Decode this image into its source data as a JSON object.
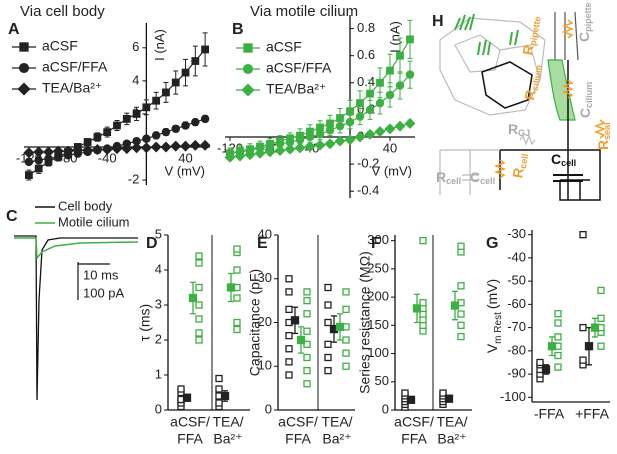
{
  "panel_labels": [
    "A",
    "B",
    "C",
    "D",
    "E",
    "F",
    "G",
    "H"
  ],
  "chart_data": [
    {
      "type": "line",
      "title": "Via cell body",
      "xlabel": "V (mV)",
      "ylabel": "I (nA)",
      "x": [
        -120,
        -110,
        -100,
        -90,
        -80,
        -70,
        -60,
        -50,
        -40,
        -30,
        -20,
        -10,
        0,
        10,
        20,
        30,
        40,
        50,
        60
      ],
      "xlim": [
        -125,
        65
      ],
      "ylim": [
        -2.3,
        7.5
      ],
      "xticks": [
        -120,
        -80,
        -40,
        40
      ],
      "yticks": [
        -2,
        2,
        4,
        6
      ],
      "series": [
        {
          "name": "aCSF",
          "color": "#222222",
          "marker": "square",
          "values": [
            -1.7,
            -1.3,
            -0.9,
            -0.6,
            -0.3,
            0,
            0.3,
            0.6,
            0.9,
            1.3,
            1.7,
            2.0,
            2.4,
            2.8,
            3.3,
            3.9,
            4.5,
            5.2,
            5.9
          ],
          "errors": [
            0.3,
            0.3,
            0.25,
            0.25,
            0.2,
            0.2,
            0.2,
            0.25,
            0.3,
            0.3,
            0.35,
            0.4,
            0.45,
            0.5,
            0.6,
            0.7,
            0.8,
            0.9,
            1.0
          ]
        },
        {
          "name": "aCSF/FFA",
          "color": "#222222",
          "marker": "circle",
          "values": [
            -0.9,
            -0.8,
            -0.7,
            -0.6,
            -0.5,
            -0.4,
            -0.3,
            -0.2,
            -0.1,
            0.05,
            0.2,
            0.35,
            0.5,
            0.7,
            0.9,
            1.1,
            1.3,
            1.5,
            1.7
          ],
          "errors": [
            0.15,
            0.15,
            0.15,
            0.15,
            0.15,
            0.15,
            0.15,
            0.15,
            0.15,
            0.15,
            0.15,
            0.15,
            0.15,
            0.2,
            0.2,
            0.2,
            0.2,
            0.2,
            0.2
          ]
        },
        {
          "name": "TEA/Ba²⁺",
          "color": "#222222",
          "marker": "diamond",
          "values": [
            -0.35,
            -0.3,
            -0.3,
            -0.25,
            -0.25,
            -0.2,
            -0.2,
            -0.15,
            -0.15,
            -0.1,
            -0.1,
            -0.05,
            -0.05,
            0,
            0,
            0.05,
            0.05,
            0.1,
            0.1
          ],
          "errors": [
            0.1,
            0.1,
            0.1,
            0.1,
            0.1,
            0.1,
            0.1,
            0.1,
            0.1,
            0.1,
            0.1,
            0.1,
            0.1,
            0.1,
            0.1,
            0.1,
            0.1,
            0.1,
            0.1
          ]
        }
      ]
    },
    {
      "type": "line",
      "title": "Via motile cilium",
      "xlabel": "V (mV)",
      "ylabel": "I (nA)",
      "x": [
        -120,
        -110,
        -100,
        -90,
        -80,
        -70,
        -60,
        -50,
        -40,
        -30,
        -20,
        -10,
        0,
        10,
        20,
        30,
        40,
        50,
        60
      ],
      "xlim": [
        -125,
        65
      ],
      "ylim": [
        -0.45,
        0.9
      ],
      "xticks": [
        -120,
        -80,
        -40,
        40
      ],
      "yticks": [
        -0.4,
        -0.2,
        0,
        0.2,
        0.4,
        0.6,
        0.8
      ],
      "series": [
        {
          "name": "aCSF",
          "color": "#3cb043",
          "marker": "square",
          "values": [
            -0.12,
            -0.1,
            -0.09,
            -0.07,
            -0.05,
            -0.03,
            -0.01,
            0.01,
            0.04,
            0.07,
            0.1,
            0.14,
            0.19,
            0.25,
            0.32,
            0.4,
            0.49,
            0.6,
            0.72
          ],
          "errors": [
            0.04,
            0.04,
            0.04,
            0.04,
            0.04,
            0.04,
            0.04,
            0.05,
            0.05,
            0.05,
            0.06,
            0.07,
            0.08,
            0.09,
            0.1,
            0.11,
            0.12,
            0.13,
            0.14
          ]
        },
        {
          "name": "aCSF/FFA",
          "color": "#3cb043",
          "marker": "circle",
          "values": [
            -0.12,
            -0.11,
            -0.1,
            -0.08,
            -0.07,
            -0.05,
            -0.04,
            -0.02,
            0,
            0.02,
            0.05,
            0.08,
            0.11,
            0.15,
            0.2,
            0.25,
            0.31,
            0.38,
            0.46
          ],
          "errors": [
            0.03,
            0.03,
            0.03,
            0.03,
            0.03,
            0.03,
            0.03,
            0.03,
            0.04,
            0.04,
            0.04,
            0.05,
            0.05,
            0.06,
            0.07,
            0.08,
            0.09,
            0.1,
            0.1
          ]
        },
        {
          "name": "TEA/Ba²⁺",
          "color": "#3cb043",
          "marker": "diamond",
          "values": [
            -0.15,
            -0.14,
            -0.13,
            -0.12,
            -0.11,
            -0.1,
            -0.09,
            -0.08,
            -0.07,
            -0.06,
            -0.05,
            -0.03,
            -0.02,
            0,
            0.02,
            0.04,
            0.06,
            0.08,
            0.1
          ],
          "errors": [
            0.02,
            0.02,
            0.02,
            0.02,
            0.02,
            0.02,
            0.02,
            0.02,
            0.02,
            0.02,
            0.02,
            0.02,
            0.02,
            0.02,
            0.02,
            0.02,
            0.02,
            0.02,
            0.02
          ]
        }
      ]
    },
    {
      "type": "dot",
      "ylabel": "τ (ms)",
      "categories": [
        [
          "aCSF/",
          "FFA"
        ],
        [
          "TEA/",
          "Ba²⁺"
        ]
      ],
      "ylim": [
        0,
        5
      ],
      "yticks": [
        0,
        1,
        2,
        3,
        4,
        5
      ],
      "groups": [
        {
          "color": "#222222",
          "points": [
            [
              0.1,
              0.2,
              0.3,
              0.5,
              0.6,
              0.3
            ],
            [
              0.1,
              0.2,
              0.4,
              0.6,
              0.9
            ]
          ],
          "mean": [
            0.35,
            0.4
          ],
          "error": [
            0.1,
            0.15
          ]
        },
        {
          "color": "#3cb043",
          "points": [
            [
              2.0,
              2.2,
              2.6,
              3.0,
              3.5,
              4.2,
              4.4
            ],
            [
              2.3,
              2.5,
              3.2,
              3.5,
              4.0,
              4.5,
              4.6
            ]
          ],
          "mean": [
            3.2,
            3.5
          ],
          "error": [
            0.45,
            0.4
          ]
        }
      ]
    },
    {
      "type": "dot",
      "ylabel": "Capacitance (pF)",
      "categories": [
        [
          "aCSF/",
          "FFA"
        ],
        [
          "TEA/",
          "Ba²⁺"
        ]
      ],
      "ylim": [
        0,
        40
      ],
      "yticks": [
        0,
        10,
        20,
        30,
        40
      ],
      "groups": [
        {
          "color": "#222222",
          "points": [
            [
              8,
              11,
              14,
              17,
              20,
              23,
              27,
              30
            ],
            [
              9,
              12,
              15,
              20,
              24,
              28
            ]
          ],
          "mean": [
            20.5,
            18.5
          ],
          "error": [
            3,
            3
          ]
        },
        {
          "color": "#3cb043",
          "points": [
            [
              6,
              9,
              12,
              15,
              18,
              22,
              25,
              27
            ],
            [
              10,
              13,
              16,
              19,
              23,
              27
            ]
          ],
          "mean": [
            16,
            19
          ],
          "error": [
            3,
            3
          ]
        }
      ]
    },
    {
      "type": "dot",
      "ylabel": "Series resistance (MΩ)",
      "categories": [
        [
          "aCSF/",
          "FFA"
        ],
        [
          "TEA/",
          "Ba²⁺"
        ]
      ],
      "ylim": [
        0,
        310
      ],
      "yticks": [
        0,
        50,
        100,
        150,
        200,
        250,
        300
      ],
      "groups": [
        {
          "color": "#222222",
          "points": [
            [
              5,
              10,
              15,
              20,
              25,
              30
            ],
            [
              10,
              15,
              20,
              25,
              30
            ]
          ],
          "mean": [
            18,
            20
          ],
          "error": [
            5,
            5
          ]
        },
        {
          "color": "#3cb043",
          "points": [
            [
              140,
              150,
              160,
              170,
              180,
              190,
              300
            ],
            [
              130,
              150,
              170,
              190,
              220,
              280,
              290
            ]
          ],
          "mean": [
            180,
            185
          ],
          "error": [
            25,
            25
          ]
        }
      ]
    },
    {
      "type": "dot",
      "ylabel": {
        "main": "V",
        "sub": "m Rest",
        "unit": "(mV)"
      },
      "categories": [
        [
          "-FFA"
        ],
        [
          "+FFA"
        ]
      ],
      "ylim": [
        -102,
        -28
      ],
      "yticks": [
        -100,
        -90,
        -80,
        -70,
        -60,
        -50,
        -40,
        -30
      ],
      "groups": [
        {
          "color": "#222222",
          "points": [
            [
              -92,
              -90,
              -88,
              -86,
              -85
            ],
            [
              -86,
              -84,
              -70,
              -30
            ]
          ],
          "mean": [
            -88,
            -78
          ],
          "error": [
            2,
            8
          ]
        },
        {
          "color": "#3cb043",
          "points": [
            [
              -87,
              -82,
              -78,
              -74,
              -68,
              -64
            ],
            [
              -78,
              -72,
              -70,
              -66,
              -54
            ]
          ],
          "mean": [
            -78,
            -70
          ],
          "error": [
            4,
            4
          ]
        }
      ]
    }
  ],
  "traces": {
    "legend": [
      "Cell body",
      "Motile cilium"
    ],
    "colors": [
      "#111111",
      "#3cb043"
    ],
    "scale_time": "10 ms",
    "scale_current": "100 pA"
  },
  "schematic": {
    "labels": [
      {
        "main": "R",
        "sub": "pipette",
        "color": "#f0a030"
      },
      {
        "main": "C",
        "sub": "pipette",
        "color": "#aaaaaa"
      },
      {
        "main": "R",
        "sub": "cilium",
        "color": "#f0a030"
      },
      {
        "main": "C",
        "sub": "cilium",
        "color": "#aaaaaa"
      },
      {
        "main": "R",
        "sub": "seal",
        "color": "#f0a030"
      },
      {
        "main": "C",
        "sub": "cell",
        "color": "#111111"
      },
      {
        "main": "R",
        "sub": "GJ",
        "color": "#aaaaaa"
      },
      {
        "main": "R",
        "sub": "cell",
        "color": "#aaaaaa"
      },
      {
        "main": "C",
        "sub": "cell",
        "color": "#aaaaaa"
      },
      {
        "main": "R",
        "sub": "cell",
        "color": "#f0a030"
      }
    ]
  }
}
